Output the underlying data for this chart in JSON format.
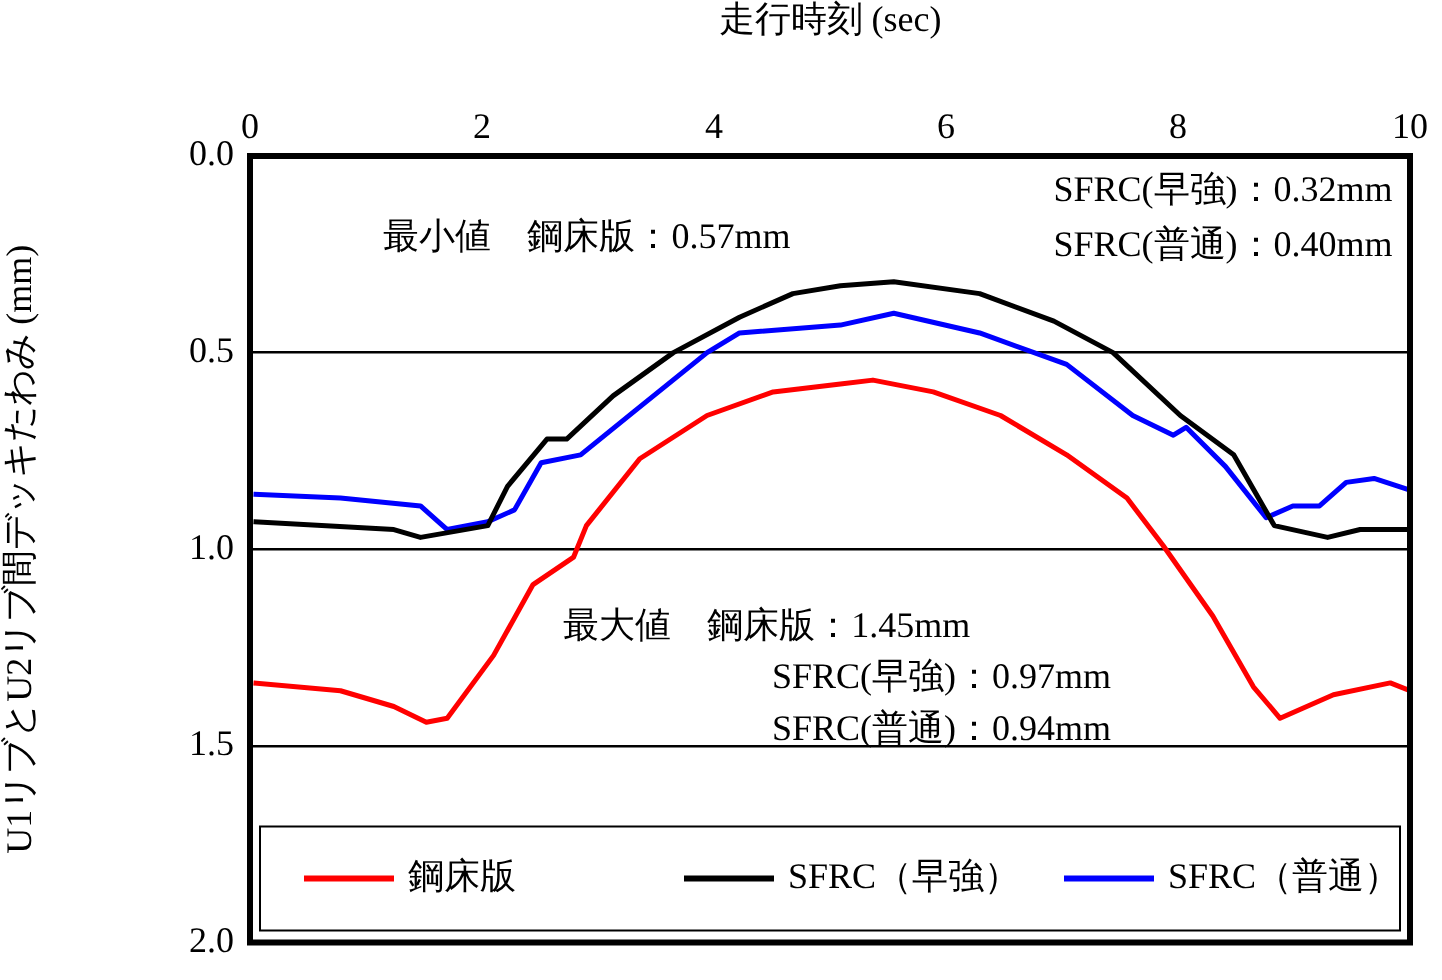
{
  "chart_data": {
    "type": "line",
    "xlabel": "走行時刻 (sec)",
    "ylabel": "U1リブとU2リブ間デッキたわみ (mm)",
    "xlim": [
      0,
      10
    ],
    "xticks": [
      0,
      2,
      4,
      6,
      8,
      10
    ],
    "ylim": [
      2.0,
      0.0
    ],
    "yticks": [
      {
        "value": 0,
        "label": "0.0"
      },
      {
        "value": 0.5,
        "label": "0.5"
      },
      {
        "value": 1,
        "label": "1.0"
      },
      {
        "value": 1.5,
        "label": "1.5"
      },
      {
        "value": 2,
        "label": "2.0"
      }
    ],
    "grid": "y",
    "legend": "bottom",
    "marker": "none",
    "line_style": "solid",
    "series": [
      {
        "name": "鋼床版",
        "color": "#ff0000",
        "x": [
          0.03,
          0.78,
          1.24,
          1.52,
          1.7,
          2.1,
          2.44,
          2.79,
          2.9,
          3.36,
          3.94,
          4.51,
          5.09,
          5.37,
          5.89,
          6.47,
          7.04,
          7.56,
          7.87,
          8.3,
          8.65,
          8.88,
          9.34,
          9.83,
          10
        ],
        "values": [
          1.34,
          1.36,
          1.4,
          1.44,
          1.43,
          1.27,
          1.09,
          1.02,
          0.94,
          0.77,
          0.66,
          0.6,
          0.58,
          0.57,
          0.6,
          0.66,
          0.76,
          0.87,
          0.99,
          1.17,
          1.35,
          1.43,
          1.37,
          1.34,
          1.36
        ]
      },
      {
        "name": "SFRC（早強）",
        "color": "#000000",
        "x": [
          0.03,
          1.24,
          1.47,
          2.05,
          2.22,
          2.56,
          2.73,
          3.13,
          3.65,
          4.22,
          4.68,
          5.09,
          5.55,
          6.29,
          6.93,
          7.44,
          8.02,
          8.48,
          8.83,
          9.29,
          9.57,
          10
        ],
        "values": [
          0.93,
          0.95,
          0.97,
          0.94,
          0.84,
          0.72,
          0.72,
          0.61,
          0.5,
          0.41,
          0.35,
          0.33,
          0.32,
          0.35,
          0.42,
          0.5,
          0.66,
          0.76,
          0.94,
          0.97,
          0.95,
          0.95
        ]
      },
      {
        "name": "SFRC（普通）",
        "color": "#0000ff",
        "x": [
          0.03,
          0.78,
          1.47,
          1.7,
          2.05,
          2.28,
          2.51,
          2.85,
          3.31,
          3.94,
          4.22,
          5.09,
          5.55,
          6.29,
          7.04,
          7.61,
          7.96,
          8.07,
          8.41,
          8.76,
          8.99,
          9.22,
          9.45,
          9.69,
          10
        ],
        "values": [
          0.86,
          0.87,
          0.89,
          0.95,
          0.93,
          0.9,
          0.78,
          0.76,
          0.65,
          0.5,
          0.45,
          0.43,
          0.4,
          0.45,
          0.53,
          0.66,
          0.71,
          0.69,
          0.79,
          0.92,
          0.89,
          0.89,
          0.83,
          0.82,
          0.85
        ]
      }
    ],
    "annotations": [
      "最小値　鋼床版：0.57mm",
      "SFRC(早強)：0.32mm",
      "SFRC(普通)：0.40mm",
      "最大値　鋼床版：1.45mm",
      "SFRC(早強)：0.97mm",
      "SFRC(普通)：0.94mm"
    ]
  }
}
